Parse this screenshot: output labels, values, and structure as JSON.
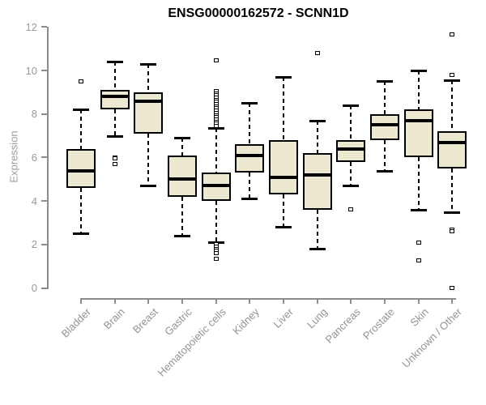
{
  "chart_data": {
    "type": "boxplot",
    "title": "ENSG00000162572 - SCNN1D",
    "ylabel": "Expression",
    "xlabel": "",
    "ylim": [
      0,
      12
    ],
    "yticks": [
      0,
      2,
      4,
      6,
      8,
      10,
      12
    ],
    "grid": false,
    "legend": "none",
    "colors": {
      "box_fill": "#EDE8D0",
      "box_stroke": "#000000",
      "median": "#000000",
      "whisker": "#000000",
      "axis_line": "#8c8c8c",
      "tick_label": "#999999",
      "title": "#000000",
      "background": "#ffffff"
    },
    "categories": [
      {
        "label": "Bladder",
        "whisker_low": 2.5,
        "q1": 4.6,
        "median": 5.4,
        "q3": 6.4,
        "whisker_high": 8.2,
        "outliers": [
          9.5
        ]
      },
      {
        "label": "Brain",
        "whisker_low": 7.0,
        "q1": 8.2,
        "median": 8.8,
        "q3": 9.1,
        "whisker_high": 10.4,
        "outliers": [
          6.0,
          5.95,
          5.7
        ]
      },
      {
        "label": "Breast",
        "whisker_low": 4.7,
        "q1": 7.1,
        "median": 8.6,
        "q3": 9.0,
        "whisker_high": 10.3,
        "outliers": []
      },
      {
        "label": "Gastric",
        "whisker_low": 2.4,
        "q1": 4.2,
        "median": 5.0,
        "q3": 6.1,
        "whisker_high": 6.9,
        "outliers": []
      },
      {
        "label": "Hematopoietic cells",
        "whisker_low": 2.1,
        "q1": 4.0,
        "median": 4.7,
        "q3": 5.3,
        "whisker_high": 7.35,
        "outliers": [
          10.45,
          9.05,
          8.95,
          8.85,
          8.75,
          8.65,
          8.55,
          8.45,
          8.35,
          8.25,
          8.15,
          8.05,
          7.95,
          7.85,
          7.75,
          7.65,
          7.55,
          7.45,
          2.0,
          1.9,
          1.8,
          1.7,
          1.6,
          1.35
        ]
      },
      {
        "label": "Kidney",
        "whisker_low": 4.1,
        "q1": 5.3,
        "median": 6.1,
        "q3": 6.6,
        "whisker_high": 8.5,
        "outliers": []
      },
      {
        "label": "Liver",
        "whisker_low": 2.8,
        "q1": 4.3,
        "median": 5.1,
        "q3": 6.8,
        "whisker_high": 9.7,
        "outliers": []
      },
      {
        "label": "Lung",
        "whisker_low": 1.8,
        "q1": 3.6,
        "median": 5.2,
        "q3": 6.2,
        "whisker_high": 7.7,
        "outliers": [
          10.8
        ]
      },
      {
        "label": "Pancreas",
        "whisker_low": 4.7,
        "q1": 5.8,
        "median": 6.4,
        "q3": 6.8,
        "whisker_high": 8.4,
        "outliers": [
          3.6
        ]
      },
      {
        "label": "Prostate",
        "whisker_low": 5.4,
        "q1": 6.8,
        "median": 7.5,
        "q3": 8.0,
        "whisker_high": 9.5,
        "outliers": []
      },
      {
        "label": "Skin",
        "whisker_low": 3.6,
        "q1": 6.0,
        "median": 7.7,
        "q3": 8.2,
        "whisker_high": 10.0,
        "outliers": [
          2.1,
          1.25
        ]
      },
      {
        "label": "Unknown / Other",
        "whisker_low": 3.5,
        "q1": 5.5,
        "median": 6.7,
        "q3": 7.2,
        "whisker_high": 9.55,
        "outliers": [
          11.65,
          9.8,
          2.7,
          2.6,
          0.0
        ]
      }
    ]
  }
}
